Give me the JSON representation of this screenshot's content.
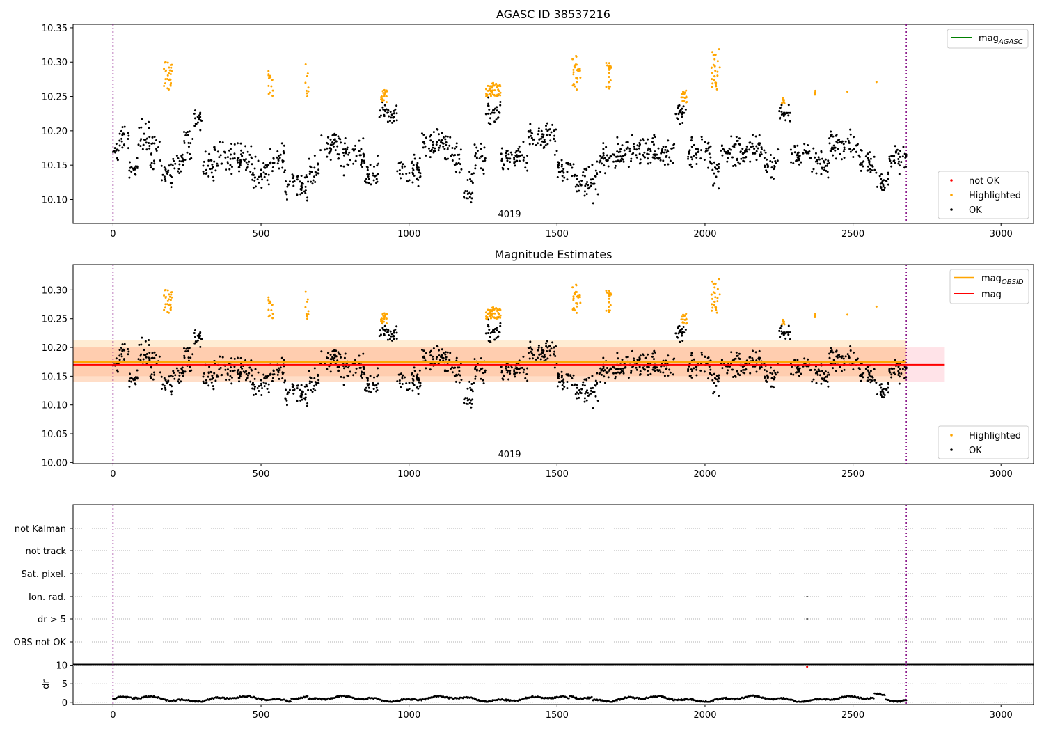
{
  "chart_data": [
    {
      "type": "scatter",
      "title": "AGASC ID 38537216",
      "xlim": [
        -135,
        3110
      ],
      "ylim": [
        10.065,
        10.355
      ],
      "x_ticks": [
        0,
        500,
        1000,
        1500,
        2000,
        2500,
        3000
      ],
      "y_ticks": [
        10.1,
        10.15,
        10.2,
        10.25,
        10.3,
        10.35
      ],
      "vlines": [
        0,
        2680
      ],
      "annotation": {
        "text": "4019",
        "x": 1340
      },
      "legend_upper": [
        {
          "name": "mag",
          "sub": "AGASC",
          "color": "#008000"
        }
      ],
      "legend_lower": [
        {
          "name": "not OK",
          "color": "#ff0000"
        },
        {
          "name": "Highlighted",
          "color": "#ffa500"
        },
        {
          "name": "OK",
          "color": "#000000"
        }
      ]
    },
    {
      "type": "scatter",
      "title": "Magnitude Estimates",
      "xlim": [
        -135,
        3110
      ],
      "ylim": [
        9.998,
        10.344
      ],
      "x_ticks": [
        0,
        500,
        1000,
        1500,
        2000,
        2500,
        3000
      ],
      "y_ticks": [
        10.0,
        10.05,
        10.1,
        10.15,
        10.2,
        10.25,
        10.3
      ],
      "vlines": [
        0,
        2680
      ],
      "annotation": {
        "text": "4019",
        "x": 1340
      },
      "mag_line": {
        "value": 10.17,
        "band": [
          10.14,
          10.2
        ],
        "x_extent": [
          -135,
          2810
        ],
        "color": "#ff0000"
      },
      "mag_obsid_line": {
        "value": 10.175,
        "band": [
          10.14,
          10.213
        ],
        "inner_band": [
          10.15,
          10.2
        ],
        "x_extent": [
          -135,
          2680
        ],
        "color": "#ffa500"
      },
      "legend_upper": [
        {
          "name": "mag",
          "sub": "OBSID",
          "color": "#ffa500"
        },
        {
          "name": "mag",
          "sub": "",
          "color": "#ff0000"
        }
      ],
      "legend_lower": [
        {
          "name": "Highlighted",
          "color": "#ffa500"
        },
        {
          "name": "OK",
          "color": "#000000"
        }
      ]
    },
    {
      "type": "scatter",
      "flag_labels": [
        "not Kalman",
        "not track",
        "Sat. pixel.",
        "Ion. rad.",
        "dr > 5",
        "OBS not OK"
      ],
      "flag_points": [
        {
          "flag": "Ion. rad.",
          "x": 2345
        },
        {
          "flag": "dr > 5",
          "x": 2345
        }
      ],
      "vlines": [
        0,
        2680
      ],
      "xlim": [
        -135,
        3110
      ]
    },
    {
      "type": "scatter",
      "ylabel": "dr",
      "xlim": [
        -135,
        3110
      ],
      "ylim": [
        -0.6,
        10.3
      ],
      "x_ticks": [
        0,
        500,
        1000,
        1500,
        2000,
        2500,
        3000
      ],
      "y_ticks": [
        0,
        5,
        10
      ],
      "outlier": {
        "x": 2345,
        "y": 9.6,
        "color": "#ff0000"
      },
      "vlines": [
        0,
        2680
      ]
    }
  ],
  "series": {
    "mag_segments": [
      {
        "x0": 0,
        "x1": 20,
        "lo": 10.15,
        "hi": 10.18
      },
      {
        "x0": 20,
        "x1": 55,
        "lo": 10.17,
        "hi": 10.21
      },
      {
        "x0": 55,
        "x1": 85,
        "lo": 10.13,
        "hi": 10.16
      },
      {
        "x0": 85,
        "x1": 125,
        "lo": 10.16,
        "hi": 10.21
      },
      {
        "x0": 125,
        "x1": 160,
        "lo": 10.15,
        "hi": 10.19
      },
      {
        "x0": 160,
        "x1": 200,
        "lo": 10.12,
        "hi": 10.15
      },
      {
        "x0": 200,
        "x1": 240,
        "lo": 10.14,
        "hi": 10.17
      },
      {
        "x0": 240,
        "x1": 270,
        "lo": 10.16,
        "hi": 10.2
      },
      {
        "x0": 270,
        "x1": 300,
        "lo": 10.2,
        "hi": 10.23
      },
      {
        "x0": 300,
        "x1": 340,
        "lo": 10.13,
        "hi": 10.17
      },
      {
        "x0": 340,
        "x1": 470,
        "lo": 10.14,
        "hi": 10.18
      },
      {
        "x0": 470,
        "x1": 530,
        "lo": 10.12,
        "hi": 10.16
      },
      {
        "x0": 530,
        "x1": 580,
        "lo": 10.14,
        "hi": 10.18
      },
      {
        "x0": 580,
        "x1": 660,
        "lo": 10.1,
        "hi": 10.14
      },
      {
        "x0": 660,
        "x1": 700,
        "lo": 10.12,
        "hi": 10.16
      },
      {
        "x0": 700,
        "x1": 760,
        "lo": 10.16,
        "hi": 10.2
      },
      {
        "x0": 760,
        "x1": 850,
        "lo": 10.14,
        "hi": 10.19
      },
      {
        "x0": 850,
        "x1": 900,
        "lo": 10.12,
        "hi": 10.16
      },
      {
        "x0": 900,
        "x1": 960,
        "lo": 10.21,
        "hi": 10.24
      },
      {
        "x0": 960,
        "x1": 1040,
        "lo": 10.12,
        "hi": 10.16
      },
      {
        "x0": 1040,
        "x1": 1140,
        "lo": 10.16,
        "hi": 10.2
      },
      {
        "x0": 1140,
        "x1": 1180,
        "lo": 10.14,
        "hi": 10.18
      },
      {
        "x0": 1180,
        "x1": 1220,
        "lo": 10.1,
        "hi": 10.14
      },
      {
        "x0": 1220,
        "x1": 1260,
        "lo": 10.14,
        "hi": 10.18
      },
      {
        "x0": 1260,
        "x1": 1310,
        "lo": 10.21,
        "hi": 10.25
      },
      {
        "x0": 1310,
        "x1": 1400,
        "lo": 10.14,
        "hi": 10.18
      },
      {
        "x0": 1400,
        "x1": 1500,
        "lo": 10.17,
        "hi": 10.21
      },
      {
        "x0": 1500,
        "x1": 1560,
        "lo": 10.13,
        "hi": 10.16
      },
      {
        "x0": 1560,
        "x1": 1640,
        "lo": 10.1,
        "hi": 10.15
      },
      {
        "x0": 1640,
        "x1": 1700,
        "lo": 10.14,
        "hi": 10.18
      },
      {
        "x0": 1700,
        "x1": 1900,
        "lo": 10.15,
        "hi": 10.19
      },
      {
        "x0": 1900,
        "x1": 1940,
        "lo": 10.21,
        "hi": 10.24
      },
      {
        "x0": 1940,
        "x1": 2020,
        "lo": 10.15,
        "hi": 10.19
      },
      {
        "x0": 2020,
        "x1": 2050,
        "lo": 10.12,
        "hi": 10.16
      },
      {
        "x0": 2050,
        "x1": 2200,
        "lo": 10.15,
        "hi": 10.19
      },
      {
        "x0": 2200,
        "x1": 2250,
        "lo": 10.13,
        "hi": 10.17
      },
      {
        "x0": 2250,
        "x1": 2290,
        "lo": 10.21,
        "hi": 10.24
      },
      {
        "x0": 2290,
        "x1": 2360,
        "lo": 10.15,
        "hi": 10.18
      },
      {
        "x0": 2360,
        "x1": 2420,
        "lo": 10.13,
        "hi": 10.17
      },
      {
        "x0": 2420,
        "x1": 2520,
        "lo": 10.16,
        "hi": 10.2
      },
      {
        "x0": 2520,
        "x1": 2580,
        "lo": 10.13,
        "hi": 10.17
      },
      {
        "x0": 2580,
        "x1": 2620,
        "lo": 10.11,
        "hi": 10.14
      },
      {
        "x0": 2620,
        "x1": 2680,
        "lo": 10.14,
        "hi": 10.18
      }
    ],
    "highlight_clusters": [
      {
        "x0": 170,
        "x1": 200,
        "lo": 10.26,
        "hi": 10.3
      },
      {
        "x0": 525,
        "x1": 540,
        "lo": 10.25,
        "hi": 10.29
      },
      {
        "x0": 650,
        "x1": 660,
        "lo": 10.25,
        "hi": 10.3
      },
      {
        "x0": 905,
        "x1": 925,
        "lo": 10.24,
        "hi": 10.26
      },
      {
        "x0": 1260,
        "x1": 1310,
        "lo": 10.25,
        "hi": 10.27
      },
      {
        "x0": 1550,
        "x1": 1580,
        "lo": 10.26,
        "hi": 10.31
      },
      {
        "x0": 1665,
        "x1": 1685,
        "lo": 10.26,
        "hi": 10.3
      },
      {
        "x0": 1920,
        "x1": 1940,
        "lo": 10.24,
        "hi": 10.26
      },
      {
        "x0": 2020,
        "x1": 2050,
        "lo": 10.26,
        "hi": 10.32
      },
      {
        "x0": 2260,
        "x1": 2270,
        "lo": 10.24,
        "hi": 10.25
      },
      {
        "x0": 2370,
        "x1": 2375,
        "lo": 10.25,
        "hi": 10.26
      },
      {
        "x0": 2480,
        "x1": 2482,
        "lo": 10.257,
        "hi": 10.257
      },
      {
        "x0": 2578,
        "x1": 2580,
        "lo": 10.271,
        "hi": 10.271
      }
    ]
  }
}
